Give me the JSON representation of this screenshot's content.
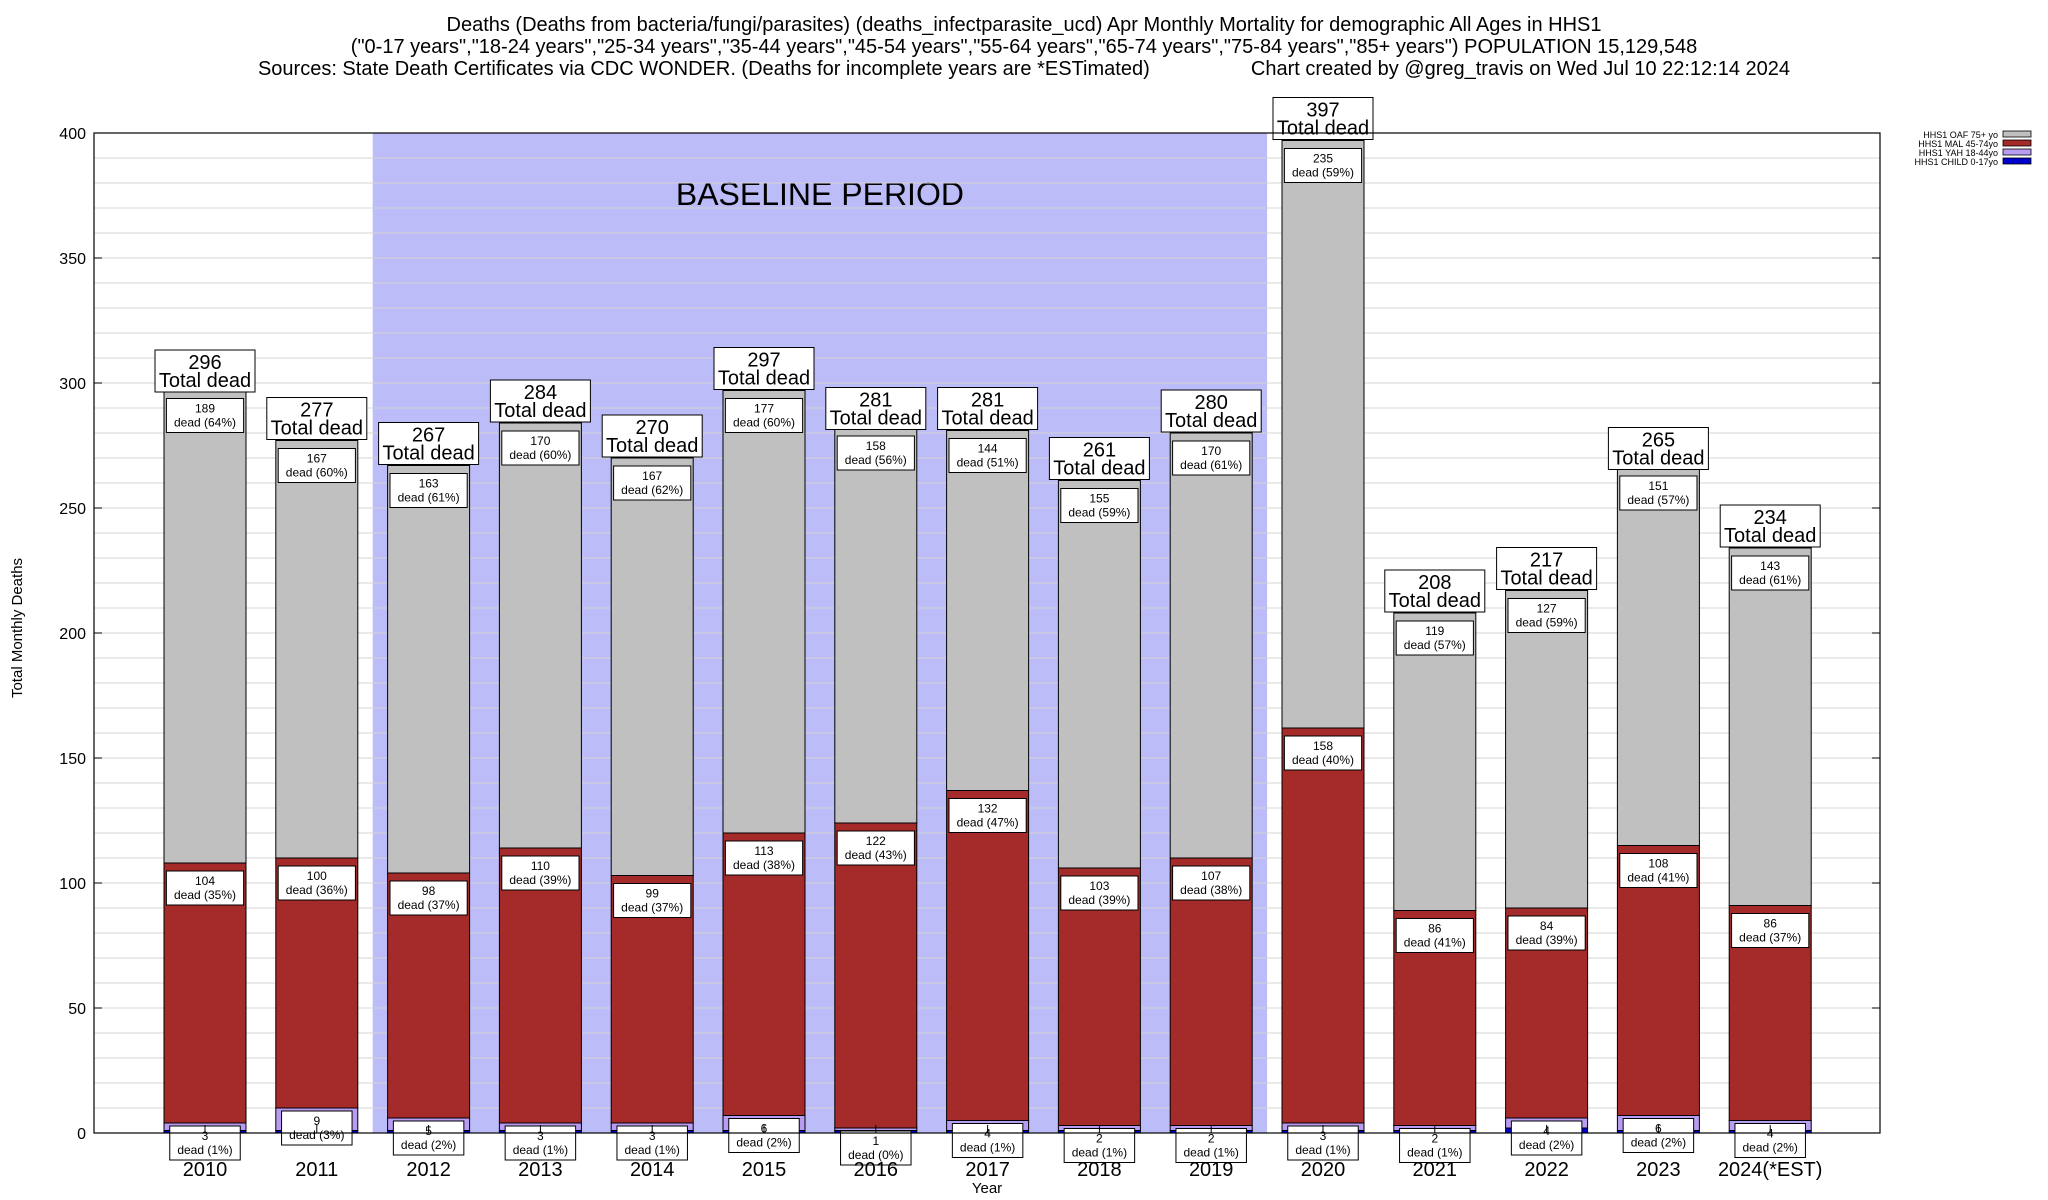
{
  "header": {
    "line1": "Deaths (Deaths from bacteria/fungi/parasites) (deaths_infectparasite_ucd) Apr Monthly Mortality for demographic All Ages in HHS1",
    "line2": "(\"0-17 years\",\"18-24 years\",\"25-34 years\",\"35-44 years\",\"45-54 years\",\"55-64 years\",\"65-74 years\",\"75-84 years\",\"85+ years\") POPULATION 15,129,548",
    "line3_left": "Sources: State Death Certificates via CDC WONDER. (Deaths for incomplete years are *ESTimated)",
    "line3_right": "Chart created by @greg_travis on Wed Jul 10 22:12:14 2024"
  },
  "chart_data": {
    "type": "bar",
    "stacked": true,
    "xlabel": "Year",
    "ylabel": "Total Monthly Deaths",
    "ylim": [
      0,
      400
    ],
    "yticks": [
      0,
      50,
      100,
      150,
      200,
      250,
      300,
      350,
      400
    ],
    "grid": true,
    "legend_position": "top-right",
    "annotation": "BASELINE PERIOD",
    "baseline_range": [
      "2012",
      "2019"
    ],
    "total_suffix": "Total dead",
    "categories": [
      "2010",
      "2011",
      "2012",
      "2013",
      "2014",
      "2015",
      "2016",
      "2017",
      "2018",
      "2019",
      "2020",
      "2021",
      "2022",
      "2023",
      "2024(*EST)"
    ],
    "totals": [
      296,
      277,
      267,
      284,
      270,
      297,
      281,
      281,
      261,
      280,
      397,
      208,
      217,
      265,
      234
    ],
    "series": [
      {
        "name": "HHS1 CHILD 0-17yo",
        "color": "#0000cc",
        "values": [
          1,
          1,
          1,
          1,
          1,
          1,
          1,
          1,
          1,
          1,
          1,
          1,
          2,
          1,
          1
        ],
        "show_labels": false
      },
      {
        "name": "HHS1 YAH 18-44yo",
        "color": "#b79cf2",
        "values": [
          3,
          9,
          5,
          3,
          3,
          6,
          1,
          4,
          2,
          2,
          3,
          2,
          4,
          6,
          4
        ],
        "labels": [
          "3 dead (1%)",
          "9 dead (3%)",
          "5 dead (2%)",
          "3 dead (1%)",
          "3 dead (1%)",
          "6 dead (2%)",
          "1 dead (0%)",
          "4 dead (1%)",
          "2 dead (1%)",
          "2 dead (1%)",
          "3 dead (1%)",
          "2 dead (1%)",
          "4 dead (2%)",
          "6 dead (2%)",
          "4 dead (2%)"
        ],
        "show_labels": true
      },
      {
        "name": "HHS1 MAL 45-74yo",
        "color": "#a52a2a",
        "values": [
          104,
          100,
          98,
          110,
          99,
          113,
          122,
          132,
          103,
          107,
          158,
          86,
          84,
          108,
          86
        ],
        "labels": [
          "104 dead (35%)",
          "100 dead (36%)",
          "98 dead (37%)",
          "110 dead (39%)",
          "99 dead (37%)",
          "113 dead (38%)",
          "122 dead (43%)",
          "132 dead (47%)",
          "103 dead (39%)",
          "107 dead (38%)",
          "158 dead (40%)",
          "86 dead (41%)",
          "84 dead (39%)",
          "108 dead (41%)",
          "86 dead (37%)"
        ],
        "show_labels": true
      },
      {
        "name": "HHS1 OAF 75+ yo",
        "color": "#c0c0c0",
        "values": [
          189,
          167,
          163,
          170,
          167,
          177,
          158,
          144,
          155,
          170,
          235,
          119,
          127,
          151,
          143
        ],
        "labels": [
          "189 dead (64%)",
          "167 dead (60%)",
          "163 dead (61%)",
          "170 dead (60%)",
          "167 dead (62%)",
          "177 dead (60%)",
          "158 dead (56%)",
          "144 dead (51%)",
          "155 dead (59%)",
          "170 dead (61%)",
          "235 dead (59%)",
          "119 dead (57%)",
          "127 dead (59%)",
          "151 dead (57%)",
          "143 dead (61%)"
        ],
        "show_labels": true
      }
    ]
  }
}
